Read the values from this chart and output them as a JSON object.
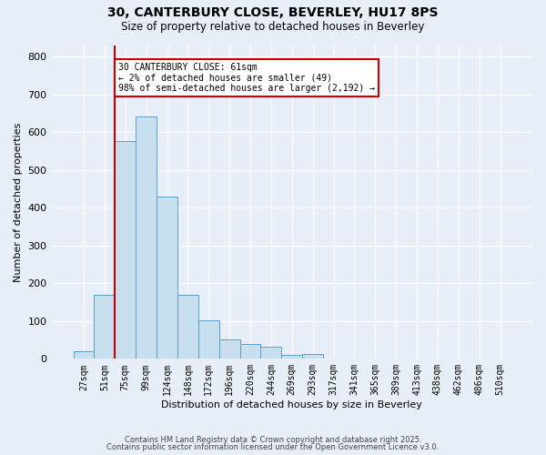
{
  "title_line1": "30, CANTERBURY CLOSE, BEVERLEY, HU17 8PS",
  "title_line2": "Size of property relative to detached houses in Beverley",
  "xlabel": "Distribution of detached houses by size in Beverley",
  "ylabel": "Number of detached properties",
  "bar_labels": [
    "27sqm",
    "51sqm",
    "75sqm",
    "99sqm",
    "124sqm",
    "148sqm",
    "172sqm",
    "196sqm",
    "220sqm",
    "244sqm",
    "269sqm",
    "293sqm",
    "317sqm",
    "341sqm",
    "365sqm",
    "389sqm",
    "413sqm",
    "438sqm",
    "462sqm",
    "486sqm",
    "510sqm"
  ],
  "bar_heights": [
    20,
    170,
    577,
    641,
    430,
    170,
    101,
    51,
    40,
    33,
    10,
    13,
    2,
    0,
    0,
    0,
    0,
    0,
    0,
    0,
    2
  ],
  "bar_color": "#c8dff0",
  "bar_edge_color": "#5b9ec9",
  "vline_x_index": 1.5,
  "annotation_title": "30 CANTERBURY CLOSE: 61sqm",
  "annotation_line1": "← 2% of detached houses are smaller (49)",
  "annotation_line2": "98% of semi-detached houses are larger (2,192) →",
  "annotation_box_color": "#ffffff",
  "annotation_box_edge_color": "#cc0000",
  "vline_color": "#cc0000",
  "ylim": [
    0,
    830
  ],
  "yticks": [
    0,
    100,
    200,
    300,
    400,
    500,
    600,
    700,
    800
  ],
  "footnote1": "Contains HM Land Registry data © Crown copyright and database right 2025.",
  "footnote2": "Contains public sector information licensed under the Open Government Licence v3.0.",
  "background_color": "#e8eef8",
  "grid_color": "#ffffff"
}
